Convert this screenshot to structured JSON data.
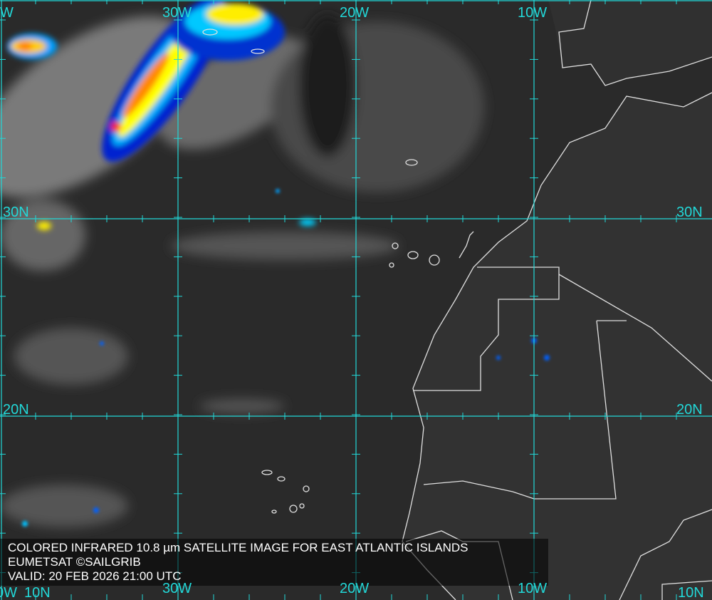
{
  "map": {
    "caption": {
      "title": "COLORED INFRARED 10.8 µm SATELLITE IMAGE FOR EAST ATLANTIC ISLANDS",
      "source": "EUMETSAT ©SAILGRIB",
      "valid": "VALID:  20 FEB 2026 21:00 UTC"
    },
    "grid_labels": {
      "top": [
        "W",
        "30W",
        "20W",
        "10W"
      ],
      "bottom": [
        "0W",
        "30W",
        "20W",
        "10W"
      ],
      "left": [
        "30N",
        "20N",
        "10N"
      ],
      "right": [
        "30N",
        "20N",
        "10N"
      ]
    },
    "colors": {
      "grid": "#22d8d8",
      "coastline": "#e0e0e0",
      "ocean": "#2a2a2a",
      "land": "#303030",
      "cold_cloud_scale": [
        "#0000c8",
        "#0090ff",
        "#00e0ff",
        "#ffff00",
        "#ff9000",
        "#ff2000"
      ]
    }
  }
}
